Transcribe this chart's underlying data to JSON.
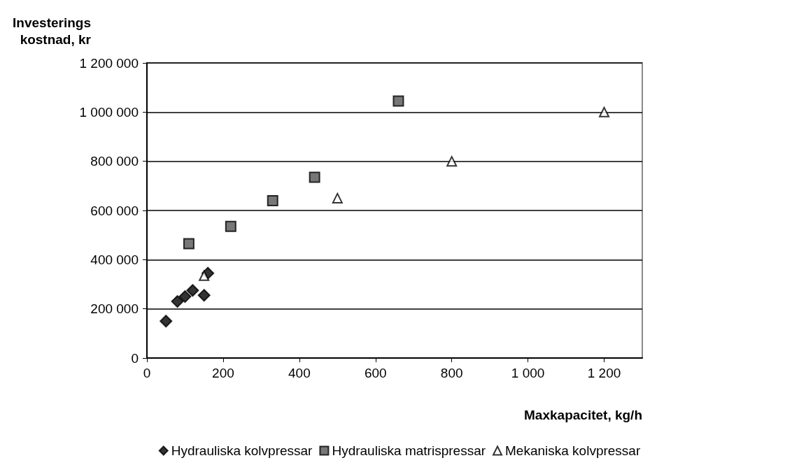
{
  "chart_data": {
    "type": "scatter",
    "ylabel": "Investerings\nkostnad, kr",
    "xlabel": "Maxkapacitet, kg/h",
    "xlim": [
      0,
      1300
    ],
    "xticks": [
      0,
      200,
      400,
      600,
      800,
      {
        "value": 1000,
        "label": "1 000"
      },
      {
        "value": 1200,
        "label": "1 200"
      }
    ],
    "ylim": [
      0,
      1200000
    ],
    "yticks": [
      0,
      {
        "value": 200000,
        "label": "200 000"
      },
      {
        "value": 400000,
        "label": "400 000"
      },
      {
        "value": 600000,
        "label": "600 000"
      },
      {
        "value": 800000,
        "label": "800 000"
      },
      {
        "value": 1000000,
        "label": "1 000 000"
      },
      {
        "value": 1200000,
        "label": "1 200 000"
      }
    ],
    "grid": "y",
    "legend": "bottom",
    "series": [
      {
        "name": "Hydrauliska kolvpressar",
        "color": "#000000",
        "marker": "diamond",
        "x": [
          50,
          80,
          100,
          120,
          150,
          160
        ],
        "values": [
          150000,
          230000,
          250000,
          275000,
          255000,
          345000
        ]
      },
      {
        "name": "Hydrauliska matrispressar",
        "color": "#555555",
        "marker": "square",
        "x": [
          110,
          220,
          330,
          440,
          660
        ],
        "values": [
          465000,
          535000,
          640000,
          735000,
          1045000
        ]
      },
      {
        "name": "Mekaniska kolvpressar",
        "color": "#ffffff",
        "marker": "triangle",
        "x": [
          150,
          500,
          800,
          1200
        ],
        "values": [
          335000,
          650000,
          800000,
          1000000
        ]
      }
    ]
  }
}
